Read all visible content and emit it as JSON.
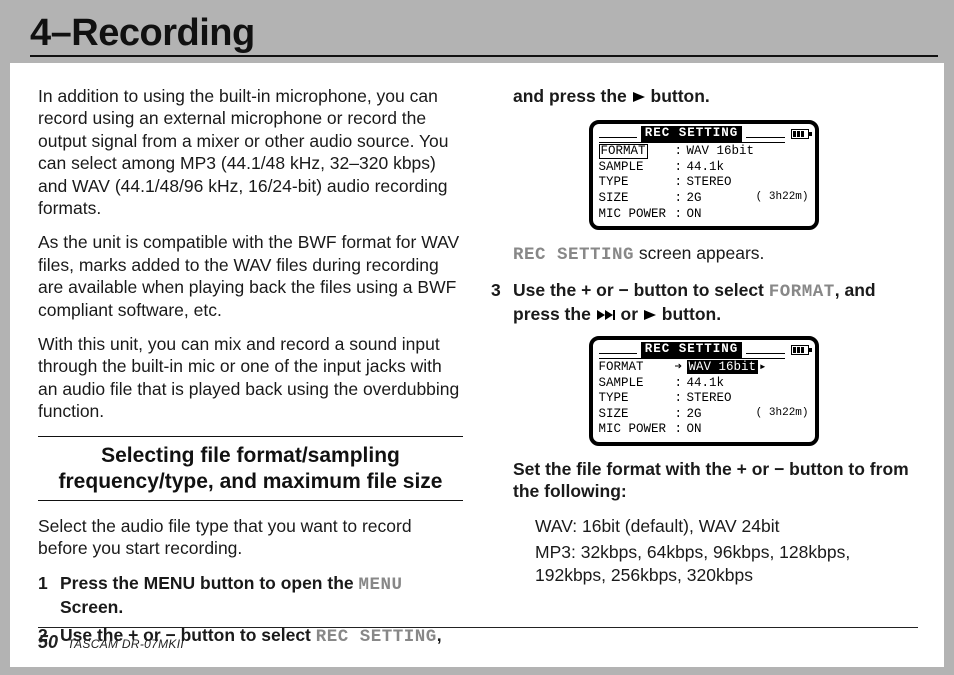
{
  "chapter": {
    "title": "4–Recording"
  },
  "left": {
    "p1": "In addition to using the built-in microphone, you can record using an external microphone or record the output signal from a mixer or other audio source. You can select among MP3 (44.1/48 kHz, 32–320 kbps) and WAV (44.1/48/96 kHz, 16/24-bit) audio recording formats.",
    "p2": "As the unit is compatible with the BWF format for WAV files, marks added to the WAV files during recording are available when playing back the files using a BWF compliant software, etc.",
    "p3": "With this unit, you can mix and record a sound input through the built-in mic or one of the input jacks with an audio file that is played back using the overdubbing function.",
    "section_heading": "Selecting file format/sampling frequency/type, and maximum file size",
    "p4": "Select the audio file type that you want to record before you start recording.",
    "step1_pre": "Press the MENU button to open the ",
    "step1_mono": "MENU",
    "step1_post": " Screen.",
    "step2_pre": "Use the + or − button to select ",
    "step2_mono": "REC SETTING",
    "step2_post": ","
  },
  "right": {
    "cont_pre": "and press the ",
    "cont_post": " button.",
    "screen1": {
      "title": "REC SETTING",
      "rows": [
        {
          "label": "FORMAT",
          "val": "WAV 16bit",
          "boxed": true
        },
        {
          "label": "SAMPLE",
          "val": "44.1k"
        },
        {
          "label": "TYPE",
          "val": "STEREO"
        },
        {
          "label": "SIZE",
          "val": "2G",
          "extra": "( 3h22m)"
        },
        {
          "label": "MIC POWER",
          "val": "ON"
        }
      ]
    },
    "appears_pre": "REC SETTING",
    "appears_post": " screen appears.",
    "step3_pre": "Use the + or − button to select ",
    "step3_mono": "FORMAT",
    "step3_mid": ", and press the ",
    "step3_post": " button.",
    "screen2": {
      "title": "REC SETTING",
      "rows": [
        {
          "label": "FORMAT",
          "val": "WAV 16bit",
          "selected": true
        },
        {
          "label": "SAMPLE",
          "val": "44.1k"
        },
        {
          "label": "TYPE",
          "val": "STEREO"
        },
        {
          "label": "SIZE",
          "val": "2G",
          "extra": "( 3h22m)"
        },
        {
          "label": "MIC POWER",
          "val": "ON"
        }
      ]
    },
    "set_format": "Set the file format with the + or − button to from the following:",
    "options1": "WAV: 16bit (default), WAV 24bit",
    "options2": "MP3: 32kbps, 64kbps, 96kbps, 128kbps, 192kbps, 256kbps, 320kbps"
  },
  "footer": {
    "page": "50",
    "model": "TASCAM DR-07MKII"
  }
}
